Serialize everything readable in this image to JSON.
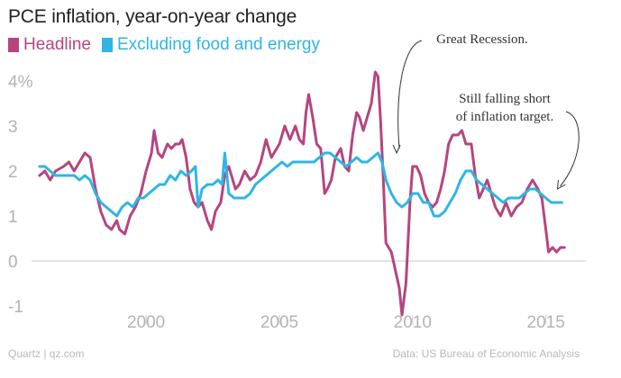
{
  "chart_data": {
    "type": "line",
    "title": "PCE inflation, year-on-year change",
    "xlabel": "",
    "ylabel": "",
    "xlim": [
      1995.7,
      2016.5
    ],
    "ylim": [
      -1.4,
      4.6
    ],
    "x_ticks": [
      {
        "value": 2000,
        "label": "2000"
      },
      {
        "value": 2005,
        "label": "2005"
      },
      {
        "value": 2010,
        "label": "2010"
      },
      {
        "value": 2015,
        "label": "2015"
      }
    ],
    "y_ticks": [
      {
        "value": 4,
        "label": "4%"
      },
      {
        "value": 3,
        "label": "3"
      },
      {
        "value": 2,
        "label": "2"
      },
      {
        "value": 1,
        "label": "1"
      },
      {
        "value": 0,
        "label": "0"
      },
      {
        "value": -1,
        "label": "-1"
      }
    ],
    "series": [
      {
        "name": "Headline",
        "color": "#b5457f",
        "points": [
          [
            1996.0,
            1.9
          ],
          [
            1996.2,
            2.0
          ],
          [
            1996.4,
            1.8
          ],
          [
            1996.6,
            2.0
          ],
          [
            1996.9,
            2.1
          ],
          [
            1997.1,
            2.2
          ],
          [
            1997.3,
            2.0
          ],
          [
            1997.5,
            2.2
          ],
          [
            1997.7,
            2.4
          ],
          [
            1997.9,
            2.3
          ],
          [
            1998.1,
            1.6
          ],
          [
            1998.3,
            1.1
          ],
          [
            1998.5,
            0.8
          ],
          [
            1998.7,
            0.7
          ],
          [
            1998.9,
            0.9
          ],
          [
            1999.0,
            0.7
          ],
          [
            1999.2,
            0.6
          ],
          [
            1999.4,
            1.0
          ],
          [
            1999.6,
            1.2
          ],
          [
            1999.8,
            1.5
          ],
          [
            2000.0,
            2.0
          ],
          [
            2000.2,
            2.4
          ],
          [
            2000.3,
            2.9
          ],
          [
            2000.45,
            2.4
          ],
          [
            2000.6,
            2.3
          ],
          [
            2000.8,
            2.6
          ],
          [
            2000.95,
            2.5
          ],
          [
            2001.1,
            2.6
          ],
          [
            2001.25,
            2.6
          ],
          [
            2001.35,
            2.7
          ],
          [
            2001.5,
            2.3
          ],
          [
            2001.65,
            1.6
          ],
          [
            2001.8,
            1.3
          ],
          [
            2001.95,
            1.2
          ],
          [
            2002.1,
            1.3
          ],
          [
            2002.3,
            0.9
          ],
          [
            2002.45,
            0.7
          ],
          [
            2002.6,
            1.1
          ],
          [
            2002.8,
            1.3
          ],
          [
            2002.95,
            1.9
          ],
          [
            2003.1,
            2.1
          ],
          [
            2003.2,
            1.9
          ],
          [
            2003.35,
            1.6
          ],
          [
            2003.5,
            1.7
          ],
          [
            2003.7,
            2.0
          ],
          [
            2003.9,
            1.8
          ],
          [
            2004.1,
            1.9
          ],
          [
            2004.3,
            2.2
          ],
          [
            2004.5,
            2.7
          ],
          [
            2004.7,
            2.3
          ],
          [
            2004.9,
            2.5
          ],
          [
            2005.0,
            2.6
          ],
          [
            2005.2,
            3.0
          ],
          [
            2005.4,
            2.7
          ],
          [
            2005.6,
            3.0
          ],
          [
            2005.75,
            2.7
          ],
          [
            2005.9,
            2.6
          ],
          [
            2006.0,
            3.3
          ],
          [
            2006.1,
            3.7
          ],
          [
            2006.25,
            3.2
          ],
          [
            2006.4,
            2.6
          ],
          [
            2006.55,
            2.5
          ],
          [
            2006.7,
            1.5
          ],
          [
            2006.8,
            1.6
          ],
          [
            2006.95,
            1.8
          ],
          [
            2007.1,
            2.3
          ],
          [
            2007.3,
            2.5
          ],
          [
            2007.45,
            2.1
          ],
          [
            2007.6,
            2.0
          ],
          [
            2007.75,
            2.8
          ],
          [
            2007.9,
            3.3
          ],
          [
            2008.0,
            3.2
          ],
          [
            2008.15,
            2.9
          ],
          [
            2008.3,
            3.2
          ],
          [
            2008.45,
            3.5
          ],
          [
            2008.6,
            4.2
          ],
          [
            2008.7,
            4.1
          ],
          [
            2008.8,
            3.1
          ],
          [
            2008.9,
            1.8
          ],
          [
            2009.0,
            0.4
          ],
          [
            2009.1,
            0.3
          ],
          [
            2009.2,
            0.2
          ],
          [
            2009.35,
            -0.2
          ],
          [
            2009.5,
            -0.6
          ],
          [
            2009.6,
            -1.2
          ],
          [
            2009.75,
            -0.5
          ],
          [
            2009.9,
            1.3
          ],
          [
            2010.0,
            2.1
          ],
          [
            2010.15,
            2.1
          ],
          [
            2010.3,
            1.9
          ],
          [
            2010.45,
            1.5
          ],
          [
            2010.6,
            1.3
          ],
          [
            2010.75,
            1.2
          ],
          [
            2010.9,
            1.3
          ],
          [
            2011.05,
            1.6
          ],
          [
            2011.2,
            2.0
          ],
          [
            2011.35,
            2.6
          ],
          [
            2011.5,
            2.8
          ],
          [
            2011.7,
            2.8
          ],
          [
            2011.85,
            2.9
          ],
          [
            2012.0,
            2.6
          ],
          [
            2012.2,
            2.6
          ],
          [
            2012.35,
            1.9
          ],
          [
            2012.5,
            1.4
          ],
          [
            2012.65,
            1.6
          ],
          [
            2012.8,
            1.8
          ],
          [
            2012.95,
            1.5
          ],
          [
            2013.1,
            1.2
          ],
          [
            2013.3,
            1.0
          ],
          [
            2013.5,
            1.3
          ],
          [
            2013.7,
            1.0
          ],
          [
            2013.9,
            1.2
          ],
          [
            2014.1,
            1.3
          ],
          [
            2014.3,
            1.6
          ],
          [
            2014.5,
            1.8
          ],
          [
            2014.7,
            1.6
          ],
          [
            2014.85,
            1.4
          ],
          [
            2015.0,
            0.7
          ],
          [
            2015.1,
            0.2
          ],
          [
            2015.25,
            0.3
          ],
          [
            2015.4,
            0.2
          ],
          [
            2015.55,
            0.3
          ],
          [
            2015.7,
            0.3
          ]
        ]
      },
      {
        "name": "Excluding food and energy",
        "color": "#2fb5e6",
        "points": [
          [
            1996.0,
            2.1
          ],
          [
            1996.2,
            2.1
          ],
          [
            1996.4,
            2.0
          ],
          [
            1996.6,
            1.9
          ],
          [
            1996.9,
            1.9
          ],
          [
            1997.1,
            1.9
          ],
          [
            1997.3,
            1.9
          ],
          [
            1997.5,
            1.8
          ],
          [
            1997.7,
            1.9
          ],
          [
            1997.9,
            1.8
          ],
          [
            1998.1,
            1.5
          ],
          [
            1998.3,
            1.3
          ],
          [
            1998.5,
            1.2
          ],
          [
            1998.7,
            1.1
          ],
          [
            1998.9,
            1.0
          ],
          [
            1999.1,
            1.2
          ],
          [
            1999.3,
            1.3
          ],
          [
            1999.5,
            1.2
          ],
          [
            1999.7,
            1.4
          ],
          [
            1999.9,
            1.4
          ],
          [
            2000.1,
            1.5
          ],
          [
            2000.3,
            1.6
          ],
          [
            2000.5,
            1.7
          ],
          [
            2000.7,
            1.7
          ],
          [
            2000.9,
            1.9
          ],
          [
            2001.1,
            1.8
          ],
          [
            2001.3,
            2.0
          ],
          [
            2001.5,
            1.9
          ],
          [
            2001.7,
            2.0
          ],
          [
            2001.85,
            2.1
          ],
          [
            2001.95,
            1.2
          ],
          [
            2002.1,
            1.6
          ],
          [
            2002.3,
            1.7
          ],
          [
            2002.5,
            1.7
          ],
          [
            2002.7,
            1.8
          ],
          [
            2002.85,
            1.7
          ],
          [
            2002.95,
            2.4
          ],
          [
            2003.1,
            1.5
          ],
          [
            2003.3,
            1.4
          ],
          [
            2003.5,
            1.4
          ],
          [
            2003.7,
            1.4
          ],
          [
            2003.9,
            1.5
          ],
          [
            2004.1,
            1.7
          ],
          [
            2004.3,
            1.8
          ],
          [
            2004.5,
            1.9
          ],
          [
            2004.7,
            2.0
          ],
          [
            2004.9,
            2.1
          ],
          [
            2005.1,
            2.2
          ],
          [
            2005.3,
            2.1
          ],
          [
            2005.5,
            2.2
          ],
          [
            2005.7,
            2.2
          ],
          [
            2005.9,
            2.2
          ],
          [
            2006.1,
            2.2
          ],
          [
            2006.3,
            2.2
          ],
          [
            2006.5,
            2.3
          ],
          [
            2006.7,
            2.4
          ],
          [
            2006.9,
            2.4
          ],
          [
            2007.1,
            2.3
          ],
          [
            2007.3,
            2.2
          ],
          [
            2007.5,
            2.1
          ],
          [
            2007.7,
            2.2
          ],
          [
            2007.9,
            2.3
          ],
          [
            2008.1,
            2.2
          ],
          [
            2008.3,
            2.2
          ],
          [
            2008.5,
            2.3
          ],
          [
            2008.7,
            2.4
          ],
          [
            2008.85,
            2.2
          ],
          [
            2009.0,
            1.8
          ],
          [
            2009.2,
            1.5
          ],
          [
            2009.4,
            1.3
          ],
          [
            2009.6,
            1.2
          ],
          [
            2009.8,
            1.3
          ],
          [
            2010.0,
            1.5
          ],
          [
            2010.2,
            1.5
          ],
          [
            2010.4,
            1.3
          ],
          [
            2010.6,
            1.3
          ],
          [
            2010.8,
            1.0
          ],
          [
            2011.0,
            1.0
          ],
          [
            2011.2,
            1.1
          ],
          [
            2011.4,
            1.3
          ],
          [
            2011.6,
            1.5
          ],
          [
            2011.8,
            1.8
          ],
          [
            2012.0,
            2.0
          ],
          [
            2012.2,
            2.0
          ],
          [
            2012.4,
            1.8
          ],
          [
            2012.6,
            1.7
          ],
          [
            2012.8,
            1.6
          ],
          [
            2013.0,
            1.5
          ],
          [
            2013.2,
            1.4
          ],
          [
            2013.4,
            1.3
          ],
          [
            2013.6,
            1.4
          ],
          [
            2013.8,
            1.4
          ],
          [
            2014.0,
            1.4
          ],
          [
            2014.2,
            1.5
          ],
          [
            2014.4,
            1.6
          ],
          [
            2014.6,
            1.6
          ],
          [
            2014.8,
            1.5
          ],
          [
            2015.0,
            1.4
          ],
          [
            2015.2,
            1.3
          ],
          [
            2015.4,
            1.3
          ],
          [
            2015.6,
            1.3
          ]
        ]
      }
    ],
    "annotations": [
      {
        "lines": [
          "Great Recession."
        ],
        "x": 2009.4,
        "y": 2.3
      },
      {
        "lines": [
          "Still falling short",
          "of inflation target."
        ],
        "x": 2015.4,
        "y": 1.5
      }
    ]
  },
  "footer": {
    "source_left": "Quartz | qz.com",
    "source_right": "Data: US Bureau of Economic Analysis"
  }
}
